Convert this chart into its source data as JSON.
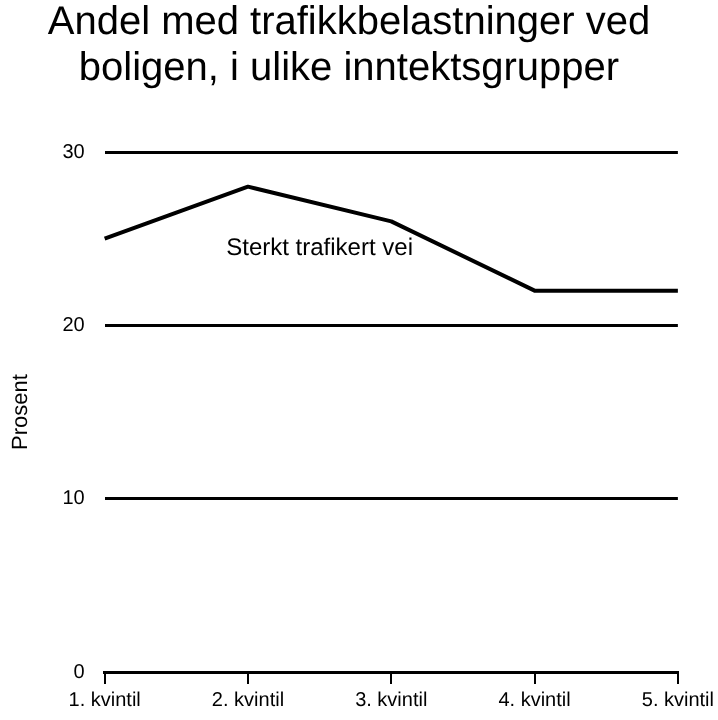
{
  "chart_data": {
    "type": "line",
    "title": "Andel med trafikkbelastninger ved boligen, i ulike inntektsgrupper",
    "ylabel": "Prosent",
    "categories": [
      "1. kvintil",
      "2. kvintil",
      "3. kvintil",
      "4. kvintil",
      "5. kvintil"
    ],
    "series": [
      {
        "name": "Sterkt trafikert vei",
        "color": "#000000",
        "values": [
          25,
          28,
          26,
          22,
          22
        ]
      }
    ],
    "ylim": [
      0,
      30
    ],
    "yticks": [
      0,
      10,
      20,
      30
    ],
    "grid": "y",
    "legend": false,
    "marker": "none",
    "line_style": "solid"
  }
}
